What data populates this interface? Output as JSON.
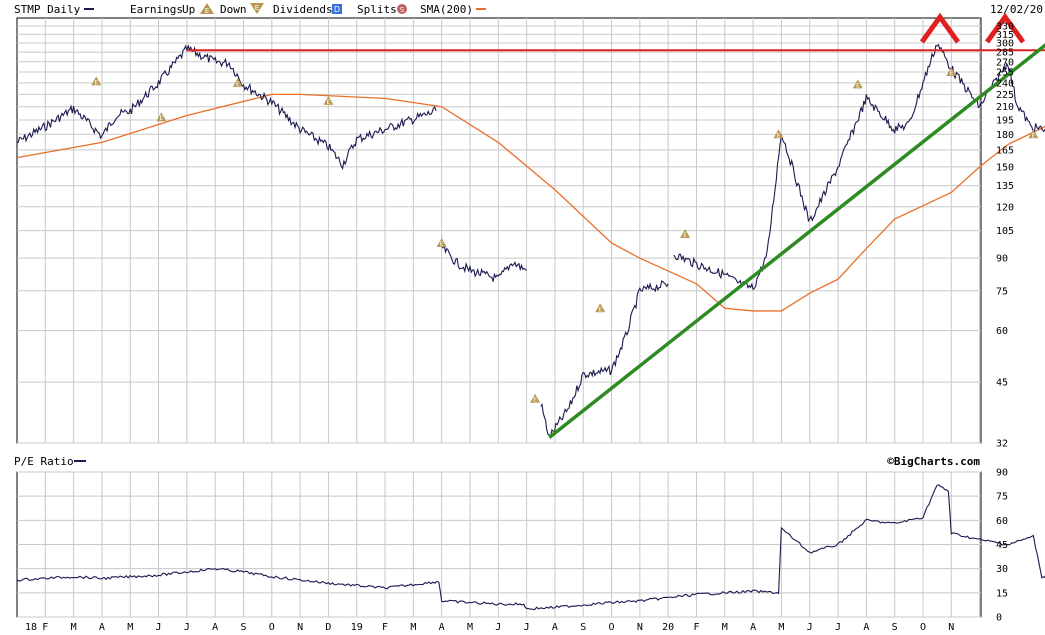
{
  "header": {
    "ticker_label": "STMP Daily",
    "earnings_label": "Earnings",
    "up_label": "Up",
    "down_label": "Down",
    "dividends_label": "Dividends",
    "splits_label": "Splits",
    "sma_label": "SMA(200)",
    "date_label": "12/02/20",
    "earnings_marker_letter": "E",
    "dividend_marker_letter": "D",
    "split_marker_letter": "S",
    "colors": {
      "price": "#1a1a50",
      "sma": "#e8702a",
      "support_line": "#2e8b22",
      "resistance_line": "#e02020",
      "earnings_marker": "#b89850",
      "dividend_marker": "#3a6fe0",
      "split_marker": "#c06060"
    }
  },
  "pe_panel": {
    "label": "P/E Ratio",
    "credit": "©BigCharts.com"
  },
  "chart_data": [
    {
      "type": "line",
      "title": "STMP Daily",
      "y_scale": "log",
      "y_ticks": [
        330,
        315,
        300,
        285,
        270,
        255,
        240,
        225,
        210,
        195,
        180,
        165,
        150,
        135,
        120,
        105,
        90,
        75,
        60,
        45,
        32
      ],
      "ylim": [
        32,
        345
      ],
      "x_month_labels": [
        "18",
        "F",
        "M",
        "A",
        "M",
        "J",
        "J",
        "A",
        "S",
        "O",
        "N",
        "D",
        "19",
        "F",
        "M",
        "A",
        "M",
        "J",
        "J",
        "A",
        "S",
        "O",
        "N",
        "20",
        "F",
        "M",
        "A",
        "M",
        "J",
        "J",
        "A",
        "S",
        "O",
        "N"
      ],
      "series": [
        {
          "name": "STMP Daily",
          "segments": [
            {
              "x": [
                0,
                1,
                2,
                3,
                3.5,
                4,
                5,
                6,
                7,
                7.5,
                8,
                9,
                10,
                11,
                11.5,
                12,
                13,
                14.8
              ],
              "y": [
                172,
                188,
                208,
                178,
                200,
                205,
                240,
                290,
                270,
                268,
                238,
                215,
                185,
                168,
                152,
                175,
                185,
                205
              ]
            },
            {
              "x": [
                15,
                15.5,
                16,
                17,
                17.5,
                18
              ],
              "y": [
                96,
                88,
                84,
                80,
                88,
                84
              ]
            },
            {
              "x": [
                18.5,
                18.8,
                19.5,
                20,
                21,
                21.5,
                22,
                23
              ],
              "y": [
                40,
                33,
                39,
                47,
                48,
                58,
                75,
                78
              ]
            },
            {
              "x": [
                23.2,
                24,
                25,
                25.5,
                26,
                26.5,
                27,
                28,
                29,
                30,
                31,
                31.5,
                32,
                32.5,
                33,
                34,
                35,
                35.3,
                35.8,
                36.3,
                37
              ],
              "y": [
                92,
                87,
                82,
                78,
                76,
                92,
                182,
                110,
                150,
                220,
                185,
                190,
                240,
                300,
                260,
                210,
                270,
                215,
                188,
                184,
                188
              ]
            }
          ]
        },
        {
          "name": "SMA(200)",
          "x": [
            0,
            3,
            6,
            9,
            10,
            13,
            15,
            17,
            19,
            21,
            22,
            24,
            25,
            26,
            26.5,
            27,
            28,
            29,
            30,
            31,
            33,
            34,
            35,
            37
          ],
          "y": [
            158,
            172,
            200,
            225,
            225,
            220,
            210,
            172,
            132,
            98,
            90,
            78,
            68,
            67,
            67,
            67,
            74,
            80,
            95,
            112,
            130,
            150,
            170,
            198
          ]
        }
      ],
      "annotations": {
        "support_trendline": {
          "from": {
            "x": 18.8,
            "y": 33
          },
          "to": {
            "x": 37.3,
            "y": 335
          }
        },
        "resistance_line": {
          "y": 288
        },
        "double_top_marks": 2
      },
      "earnings_markers": [
        {
          "x": 2.8,
          "y": 242
        },
        {
          "x": 5.1,
          "y": 198
        },
        {
          "x": 7.8,
          "y": 240
        },
        {
          "x": 11,
          "y": 217
        },
        {
          "x": 15,
          "y": 98
        },
        {
          "x": 18.3,
          "y": 41
        },
        {
          "x": 20.6,
          "y": 68
        },
        {
          "x": 23.6,
          "y": 103
        },
        {
          "x": 26.9,
          "y": 180
        },
        {
          "x": 29.7,
          "y": 238
        },
        {
          "x": 33,
          "y": 255
        },
        {
          "x": 35.9,
          "y": 180
        }
      ]
    },
    {
      "type": "line",
      "title": "P/E Ratio",
      "y_ticks": [
        90,
        75,
        60,
        45,
        30,
        15,
        0
      ],
      "ylim": [
        0,
        90
      ],
      "series": [
        {
          "name": "P/E Ratio",
          "x": [
            0,
            2,
            3,
            5,
            7,
            8,
            9,
            11,
            13,
            14.9,
            15,
            16,
            17,
            17.9,
            18,
            19,
            21,
            22,
            23,
            24,
            25,
            26,
            26.9,
            27,
            28,
            29,
            30,
            31,
            32,
            32.5,
            32.9,
            33,
            34,
            35,
            35.9,
            36.2,
            37
          ],
          "y": [
            23,
            25,
            24,
            26,
            30,
            28,
            25,
            21,
            18,
            22,
            10,
            9,
            8,
            8,
            5,
            6,
            9,
            10,
            12,
            14,
            15,
            16,
            15,
            55,
            40,
            45,
            60,
            58,
            62,
            82,
            78,
            52,
            48,
            45,
            50,
            25,
            24
          ]
        }
      ]
    }
  ]
}
